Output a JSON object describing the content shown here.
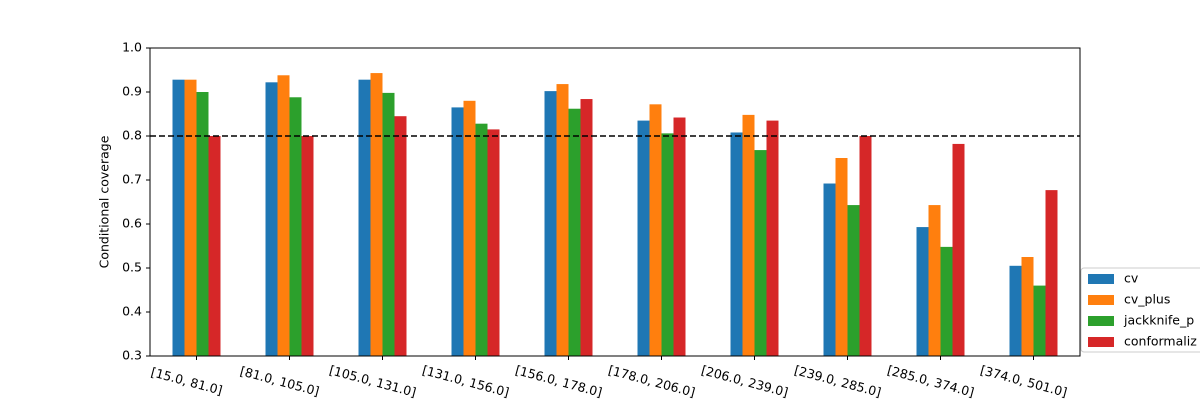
{
  "chart_data": {
    "type": "bar",
    "ylabel": "Conditional coverage",
    "categories": [
      "[15.0, 81.0]",
      "[81.0, 105.0]",
      "[105.0, 131.0]",
      "[131.0, 156.0]",
      "[156.0, 178.0]",
      "[178.0, 206.0]",
      "[206.0, 239.0]",
      "[239.0, 285.0]",
      "[285.0, 374.0]",
      "[374.0, 501.0]"
    ],
    "series": [
      {
        "name": "cv",
        "color": "#1f77b4",
        "values": [
          0.928,
          0.922,
          0.928,
          0.865,
          0.902,
          0.835,
          0.808,
          0.692,
          0.593,
          0.505
        ]
      },
      {
        "name": "cv_plus",
        "color": "#ff7f0e",
        "values": [
          0.928,
          0.938,
          0.943,
          0.88,
          0.918,
          0.872,
          0.848,
          0.75,
          0.643,
          0.525
        ]
      },
      {
        "name": "jackknife_p",
        "color": "#2ca02c",
        "values": [
          0.9,
          0.888,
          0.898,
          0.828,
          0.862,
          0.806,
          0.768,
          0.643,
          0.548,
          0.46
        ]
      },
      {
        "name": "conformaliz",
        "color": "#d62728",
        "values": [
          0.8,
          0.8,
          0.845,
          0.815,
          0.884,
          0.842,
          0.835,
          0.8,
          0.782,
          0.677
        ]
      }
    ],
    "hline": 0.8,
    "ylim": [
      0.3,
      1.0
    ],
    "yticks": [
      0.3,
      0.4,
      0.5,
      0.6,
      0.7,
      0.8,
      0.9,
      {
        "value": 1,
        "label": "1.0"
      }
    ],
    "grid": false,
    "legend": "right"
  }
}
